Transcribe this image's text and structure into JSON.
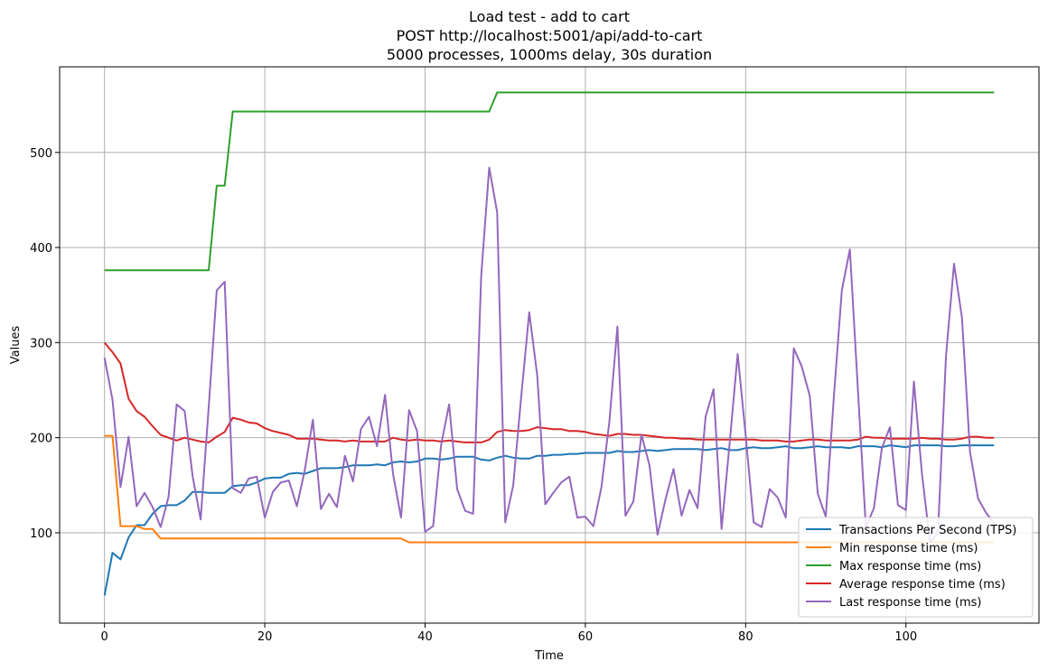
{
  "chart_data": {
    "type": "line",
    "title_lines": [
      "Load test - add to cart",
      "POST http://localhost:5001/api/add-to-cart",
      "5000 processes, 1000ms delay, 30s duration"
    ],
    "xlabel": "Time",
    "ylabel": "Values",
    "xlim": [
      -5.6,
      116.6
    ],
    "ylim": [
      5,
      590
    ],
    "xticks": [
      0,
      20,
      40,
      60,
      80,
      100
    ],
    "yticks": [
      100,
      200,
      300,
      400,
      500
    ],
    "grid": true,
    "legend_position": "lower-right",
    "series": [
      {
        "name": "Transactions Per Second (TPS)",
        "color": "#1f77b4",
        "x": [
          0,
          1,
          2,
          3,
          4,
          5,
          6,
          7,
          8,
          9,
          10,
          11,
          12,
          13,
          14,
          15,
          16,
          17,
          18,
          19,
          20,
          21,
          22,
          23,
          24,
          25,
          26,
          27,
          28,
          29,
          30,
          31,
          32,
          33,
          34,
          35,
          36,
          37,
          38,
          39,
          40,
          41,
          42,
          43,
          44,
          45,
          46,
          47,
          48,
          49,
          50,
          51,
          52,
          53,
          54,
          55,
          56,
          57,
          58,
          59,
          60,
          61,
          62,
          63,
          64,
          65,
          66,
          67,
          68,
          69,
          70,
          71,
          72,
          73,
          74,
          75,
          76,
          77,
          78,
          79,
          80,
          81,
          82,
          83,
          84,
          85,
          86,
          87,
          88,
          89,
          90,
          91,
          92,
          93,
          94,
          95,
          96,
          97,
          98,
          99,
          100,
          101,
          102,
          103,
          104,
          105,
          106,
          107,
          108,
          109,
          110,
          111
        ],
        "values": [
          34,
          79,
          72,
          95,
          108,
          108,
          120,
          128,
          129,
          129,
          134,
          143,
          143,
          142,
          142,
          142,
          149,
          150,
          150,
          153,
          157,
          158,
          158,
          162,
          163,
          162,
          165,
          168,
          168,
          168,
          169,
          171,
          171,
          171,
          172,
          171,
          174,
          175,
          174,
          175,
          178,
          178,
          177,
          178,
          180,
          180,
          180,
          177,
          176,
          179,
          181,
          179,
          178,
          178,
          181,
          181,
          182,
          182,
          183,
          183,
          184,
          184,
          184,
          184,
          186,
          185,
          185,
          186,
          187,
          186,
          187,
          188,
          188,
          188,
          188,
          187,
          188,
          189,
          187,
          187,
          189,
          190,
          189,
          189,
          190,
          191,
          189,
          189,
          190,
          191,
          190,
          190,
          190,
          189,
          191,
          191,
          191,
          190,
          192,
          191,
          190,
          192,
          192,
          192,
          192,
          191,
          191,
          192,
          192,
          192,
          192,
          192
        ]
      },
      {
        "name": "Min response time (ms)",
        "color": "#ff7f0e",
        "x": [
          0,
          1,
          2,
          3,
          4,
          5,
          6,
          7,
          8,
          37,
          38,
          111
        ],
        "values": [
          202,
          202,
          107,
          107,
          107,
          104,
          104,
          94,
          94,
          94,
          90,
          90
        ]
      },
      {
        "name": "Max response time (ms)",
        "color": "#2ca02c",
        "x": [
          0,
          13,
          14,
          15,
          16,
          48,
          49,
          111
        ],
        "values": [
          376,
          376,
          465,
          465,
          543,
          543,
          563,
          563
        ]
      },
      {
        "name": "Average response time (ms)",
        "color": "#d62728",
        "x": [
          0,
          1,
          2,
          3,
          4,
          5,
          6,
          7,
          8,
          9,
          10,
          11,
          12,
          13,
          14,
          15,
          16,
          17,
          18,
          19,
          20,
          21,
          22,
          23,
          24,
          25,
          26,
          27,
          28,
          29,
          30,
          31,
          32,
          33,
          34,
          35,
          36,
          37,
          38,
          39,
          40,
          41,
          42,
          43,
          44,
          45,
          46,
          47,
          48,
          49,
          50,
          51,
          52,
          53,
          54,
          55,
          56,
          57,
          58,
          59,
          60,
          61,
          62,
          63,
          64,
          65,
          66,
          67,
          68,
          69,
          70,
          71,
          72,
          73,
          74,
          75,
          76,
          77,
          78,
          79,
          80,
          81,
          82,
          83,
          84,
          85,
          86,
          87,
          88,
          89,
          90,
          91,
          92,
          93,
          94,
          95,
          96,
          97,
          98,
          99,
          100,
          101,
          102,
          103,
          104,
          105,
          106,
          107,
          108,
          109,
          110,
          111
        ],
        "values": [
          300,
          290,
          278,
          241,
          228,
          222,
          212,
          203,
          200,
          197,
          200,
          198,
          196,
          195,
          201,
          206,
          221,
          219,
          216,
          215,
          210,
          207,
          205,
          203,
          199,
          199,
          199,
          198,
          197,
          197,
          196,
          197,
          196,
          196,
          196,
          196,
          200,
          198,
          197,
          198,
          197,
          197,
          196,
          197,
          196,
          195,
          195,
          195,
          198,
          206,
          208,
          207,
          207,
          208,
          211,
          210,
          209,
          209,
          207,
          207,
          206,
          204,
          203,
          202,
          204,
          204,
          203,
          203,
          202,
          201,
          200,
          200,
          199,
          199,
          198,
          198,
          198,
          198,
          198,
          198,
          198,
          198,
          197,
          197,
          197,
          196,
          196,
          197,
          198,
          198,
          197,
          197,
          197,
          197,
          198,
          201,
          200,
          200,
          199,
          199,
          199,
          199,
          200,
          199,
          199,
          198,
          198,
          199,
          201,
          201,
          200,
          200
        ]
      },
      {
        "name": "Last response time (ms)",
        "color": "#9467bd",
        "x": [
          0,
          1,
          2,
          3,
          4,
          5,
          6,
          7,
          8,
          9,
          10,
          11,
          12,
          13,
          14,
          15,
          16,
          17,
          18,
          19,
          20,
          21,
          22,
          23,
          24,
          25,
          26,
          27,
          28,
          29,
          30,
          31,
          32,
          33,
          34,
          35,
          36,
          37,
          38,
          39,
          40,
          41,
          42,
          43,
          44,
          45,
          46,
          47,
          48,
          49,
          50,
          51,
          52,
          53,
          54,
          55,
          56,
          57,
          58,
          59,
          60,
          61,
          62,
          63,
          64,
          65,
          66,
          67,
          68,
          69,
          70,
          71,
          72,
          73,
          74,
          75,
          76,
          77,
          78,
          79,
          80,
          81,
          82,
          83,
          84,
          85,
          86,
          87,
          88,
          89,
          90,
          91,
          92,
          93,
          94,
          95,
          96,
          97,
          98,
          99,
          100,
          101,
          102,
          103,
          104,
          105,
          106,
          107,
          108,
          109,
          110,
          111
        ],
        "values": [
          284,
          240,
          148,
          201,
          128,
          142,
          127,
          106,
          138,
          235,
          228,
          159,
          114,
          232,
          355,
          364,
          147,
          142,
          157,
          159,
          116,
          143,
          153,
          155,
          128,
          166,
          219,
          125,
          141,
          127,
          181,
          154,
          209,
          222,
          191,
          245,
          162,
          116,
          229,
          207,
          101,
          107,
          192,
          235,
          146,
          123,
          120,
          370,
          484,
          437,
          111,
          150,
          244,
          332,
          265,
          130,
          142,
          153,
          159,
          116,
          117,
          107,
          148,
          217,
          317,
          118,
          133,
          203,
          171,
          98,
          135,
          167,
          118,
          145,
          126,
          222,
          251,
          104,
          194,
          288,
          203,
          111,
          106,
          146,
          137,
          116,
          294,
          275,
          244,
          141,
          117,
          242,
          355,
          398,
          252,
          106,
          126,
          189,
          211,
          129,
          124,
          259,
          162,
          90,
          100,
          286,
          383,
          326,
          185,
          136,
          121,
          110
        ]
      }
    ]
  }
}
